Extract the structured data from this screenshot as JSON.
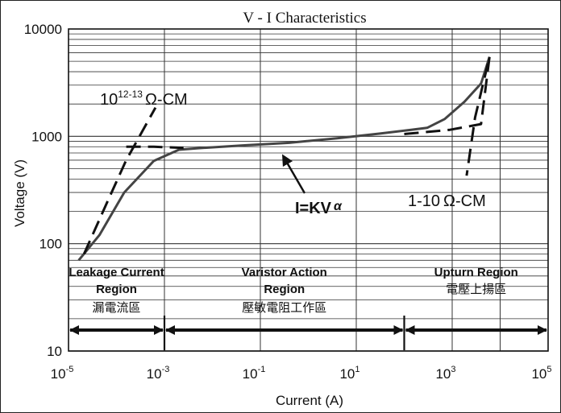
{
  "chart_data": {
    "type": "line",
    "title": "V - I  Characteristics",
    "xlabel": "Current (A)",
    "ylabel": "Voltage (V)",
    "x_scale": "log",
    "y_scale": "log",
    "xlim": [
      1e-05,
      100000
    ],
    "ylim": [
      10,
      10000
    ],
    "grid": true,
    "x_ticks": [
      {
        "value": 1e-05,
        "base": "10",
        "exp": "-5"
      },
      {
        "value": 0.001,
        "base": "10",
        "exp": "-3"
      },
      {
        "value": 0.1,
        "base": "10",
        "exp": "-1"
      },
      {
        "value": 10,
        "base": "10",
        "exp": "1"
      },
      {
        "value": 1000,
        "base": "10",
        "exp": "3"
      },
      {
        "value": 100000,
        "base": "10",
        "exp": "5"
      }
    ],
    "y_ticks": [
      {
        "value": 10,
        "label": "10"
      },
      {
        "value": 100,
        "label": "100"
      },
      {
        "value": 1000,
        "label": "1000"
      },
      {
        "value": 10000,
        "label": "10000"
      }
    ],
    "series": [
      {
        "style": "solid",
        "x": [
          1.63e-05,
          4.4e-05,
          0.000145,
          0.0006,
          0.002,
          0.005,
          0.04,
          0.4,
          4,
          30,
          300,
          700,
          1800,
          4000,
          6000
        ],
        "y": [
          70,
          120,
          300,
          590,
          750,
          775,
          820,
          870,
          960,
          1060,
          1200,
          1450,
          2100,
          3100,
          5500
        ]
      },
      {
        "style": "dashed",
        "x": [
          2.1e-05,
          6.3e-05,
          0.00016,
          0.00065
        ],
        "y": [
          80,
          240,
          600,
          1850
        ]
      },
      {
        "style": "dashed",
        "x": [
          0.00016,
          0.0006,
          0.0025
        ],
        "y": [
          800,
          800,
          780
        ]
      },
      {
        "style": "dashed",
        "x": [
          100,
          900,
          2500,
          4000,
          6000,
          3000,
          2000
        ],
        "y": [
          1050,
          1150,
          1250,
          1300,
          5500,
          1500,
          430
        ]
      }
    ],
    "annotations": {
      "leakage_ohm": {
        "base": "10",
        "exp": "12-13",
        "unit": "Ω-CM"
      },
      "upturn_ohm": {
        "text": "1-10",
        "unit": "Ω-CM"
      },
      "equation": {
        "text": "I=KV",
        "suffix": "α"
      }
    },
    "regions": [
      {
        "title_line1": "Leakage Current",
        "title_line2": "Region",
        "cjk": "漏電流區",
        "x_start": 1e-05,
        "x_end": 0.001
      },
      {
        "title_line1": "Varistor Action",
        "title_line2": "Region",
        "cjk": "壓敏電阻工作區",
        "x_start": 0.001,
        "x_end": 100
      },
      {
        "title_line1": "Upturn Region",
        "title_line2": "",
        "cjk": "電壓上揚區",
        "x_start": 100,
        "x_end": 100000
      }
    ]
  }
}
